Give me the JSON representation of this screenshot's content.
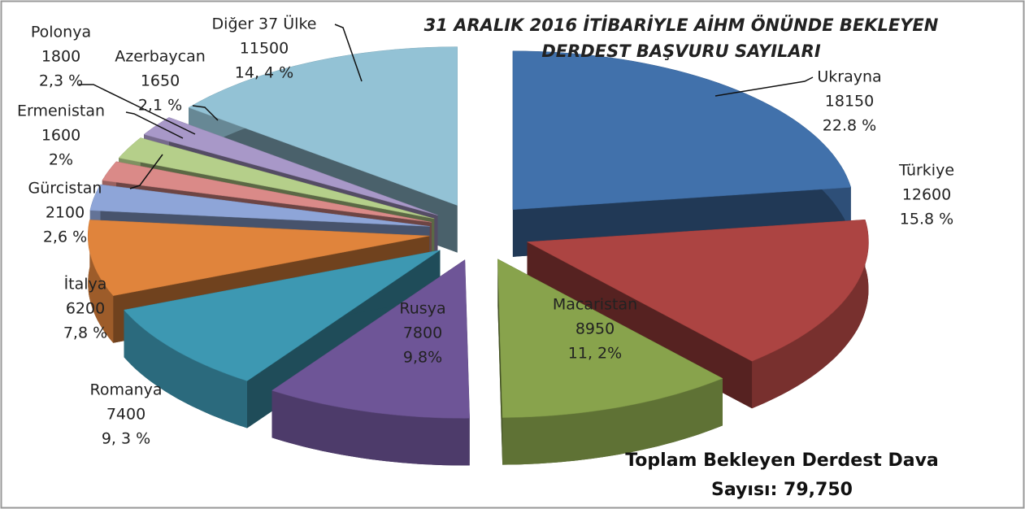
{
  "chart_data": {
    "type": "pie3d",
    "title_lines": [
      "31 ARALIK 2016 İTİBARİYLE AİHM ÖNÜNDE BEKLEYEN",
      "DERDEST BAŞVURU SAYILARI"
    ],
    "categories": [
      "Ukrayna",
      "Türkiye",
      "Macaristan",
      "Rusya",
      "Romanya",
      "İtalya",
      "Gürcistan",
      "Ermenistan",
      "Polonya",
      "Azerbaycan",
      "Diğer 37 Ülke"
    ],
    "values": [
      18150,
      12600,
      8950,
      7800,
      7400,
      6200,
      2100,
      1600,
      1800,
      1650,
      11500
    ],
    "percent_labels": [
      "22.8 %",
      "15.8 %",
      "11, 2%",
      "9,8%",
      "9, 3 %",
      "7,8 %",
      "2,6 %",
      "2%",
      "2,3 %",
      "2,1 %",
      "14, 4 %"
    ],
    "colors": [
      "#4171ab",
      "#ac4442",
      "#88a34c",
      "#6e5597",
      "#3d98b2",
      "#e0843c",
      "#8ea5d8",
      "#da8a88",
      "#b5cf8a",
      "#a898c8",
      "#93c2d5"
    ],
    "annotation_lines": [
      "Toplam  Bekleyen Derdest Dava",
      "Sayısı: 79,750"
    ]
  }
}
